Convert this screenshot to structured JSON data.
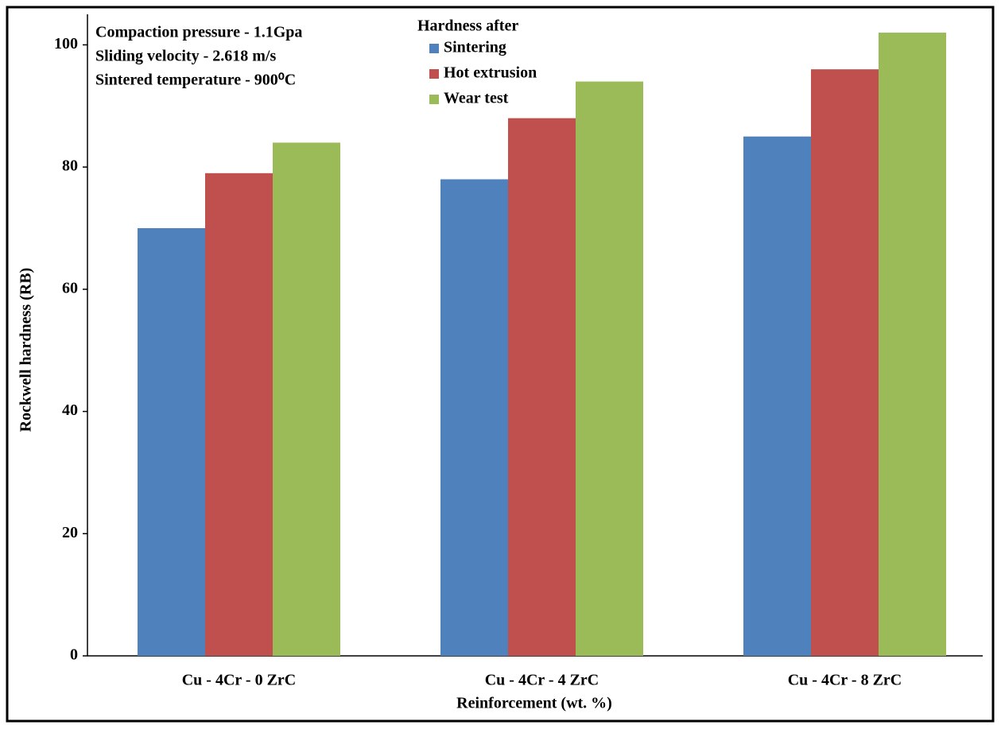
{
  "chart_data": {
    "type": "bar",
    "annotations": [
      "Compaction pressure - 1.1Gpa",
      "Sliding velocity - 2.618 m/s",
      "Sintered temperature - 900⁰C"
    ],
    "legend_title": "Hardness after",
    "x_label": "Reinforcement (wt. %)",
    "y_label": "Rockwell hardness (RB)",
    "categories": [
      "Cu - 4Cr - 0 ZrC",
      "Cu - 4Cr - 4 ZrC",
      "Cu - 4Cr - 8 ZrC"
    ],
    "series": [
      {
        "name": "Sintering",
        "color": "#4f81bd",
        "values": [
          70,
          78,
          85
        ]
      },
      {
        "name": "Hot extrusion",
        "color": "#c0504d",
        "values": [
          79,
          88,
          96
        ]
      },
      {
        "name": "Wear test",
        "color": "#9bbb59",
        "values": [
          84,
          94,
          102
        ]
      }
    ],
    "ylim": [
      0,
      105
    ],
    "yticks": [
      0,
      20,
      40,
      60,
      80,
      100
    ],
    "grid": false
  }
}
